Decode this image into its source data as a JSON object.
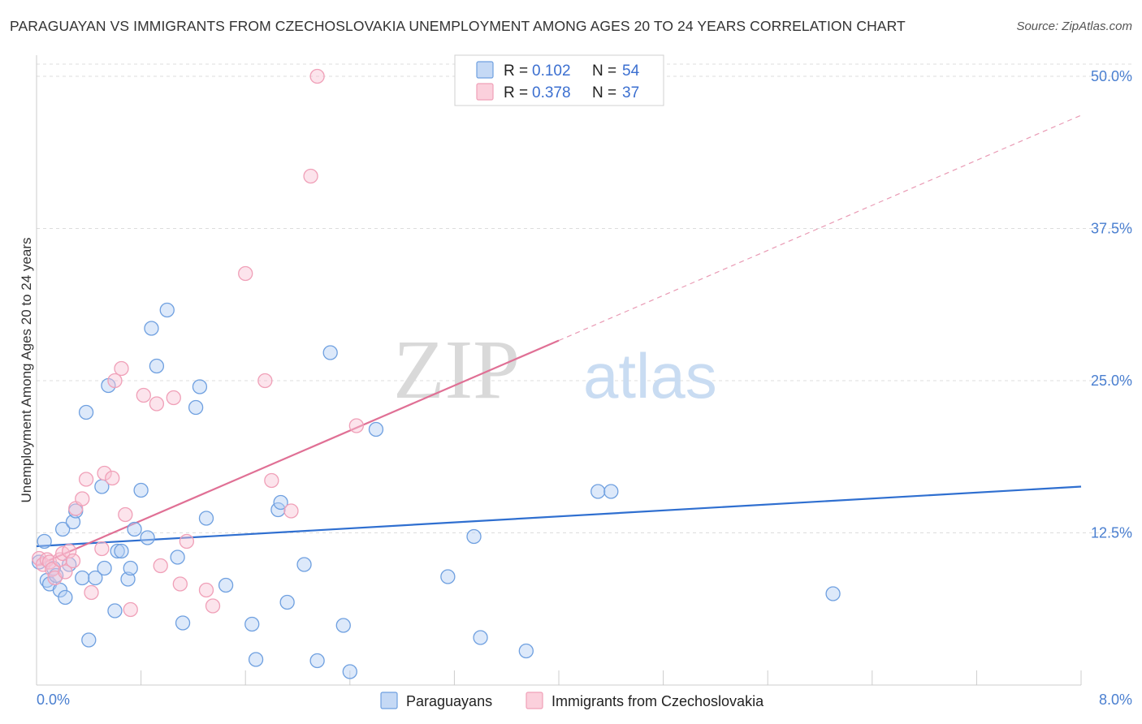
{
  "title": "PARAGUAYAN VS IMMIGRANTS FROM CZECHOSLOVAKIA UNEMPLOYMENT AMONG AGES 20 TO 24 YEARS CORRELATION CHART",
  "source": "Source: ZipAtlas.com",
  "watermark": {
    "zip": "ZIP",
    "atlas": "atlas"
  },
  "chart_data": {
    "type": "scatter",
    "ylabel": "Unemployment Among Ages 20 to 24 years",
    "xlabel": "",
    "xlim": [
      0,
      8
    ],
    "ylim": [
      0,
      51
    ],
    "x_tick_labels": [
      "0.0%",
      "8.0%"
    ],
    "y_ticks": [
      12.5,
      25.0,
      37.5,
      50.0
    ],
    "y_tick_labels": [
      "12.5%",
      "25.0%",
      "37.5%",
      "50.0%"
    ],
    "grid": true,
    "legend_position": "top-center",
    "stats_legend": [
      {
        "r_label": "R =",
        "r_value": "0.102",
        "n_label": "N =",
        "n_value": "54"
      },
      {
        "r_label": "R =",
        "r_value": "0.378",
        "n_label": "N =",
        "n_value": "37"
      }
    ],
    "series": [
      {
        "name": "Paraguayans",
        "color": "#6fa0e0",
        "line_color": "#2f6fd0",
        "trend": {
          "x": [
            0,
            8
          ],
          "y": [
            11.4,
            16.3
          ],
          "dashed_to": null
        },
        "x": [
          0.02,
          0.06,
          0.08,
          0.1,
          0.13,
          0.15,
          0.18,
          0.2,
          0.22,
          0.25,
          0.28,
          0.3,
          0.35,
          0.38,
          0.4,
          0.45,
          0.5,
          0.52,
          0.55,
          0.6,
          0.62,
          0.65,
          0.7,
          0.72,
          0.75,
          0.8,
          0.85,
          0.88,
          0.92,
          1.0,
          1.08,
          1.12,
          1.22,
          1.25,
          1.3,
          1.45,
          1.65,
          1.68,
          1.85,
          1.87,
          1.92,
          2.05,
          2.15,
          2.25,
          2.35,
          2.4,
          2.6,
          3.15,
          3.35,
          3.4,
          3.75,
          4.3,
          4.4,
          6.1
        ],
        "y": [
          10.1,
          11.8,
          8.6,
          8.3,
          9.6,
          9.0,
          7.8,
          12.8,
          7.2,
          9.9,
          13.4,
          14.3,
          8.8,
          22.4,
          3.7,
          8.8,
          16.3,
          9.6,
          24.6,
          6.1,
          11.0,
          11.0,
          8.7,
          9.6,
          12.8,
          16.0,
          12.1,
          29.3,
          26.2,
          30.8,
          10.5,
          5.1,
          22.8,
          24.5,
          13.7,
          8.2,
          5.0,
          2.1,
          14.4,
          15.0,
          6.8,
          9.9,
          2.0,
          27.3,
          4.9,
          1.1,
          21.0,
          8.9,
          12.2,
          3.9,
          2.8,
          15.9,
          15.9,
          7.5
        ]
      },
      {
        "name": "Immigrants from Czechoslovakia",
        "color": "#f0a0b8",
        "line_color": "#e07095",
        "trend": {
          "x": [
            0,
            4.0
          ],
          "y": [
            9.8,
            28.3
          ],
          "dashed_to": {
            "x": 8.0,
            "y": 46.8
          }
        },
        "x": [
          0.02,
          0.05,
          0.08,
          0.1,
          0.12,
          0.14,
          0.18,
          0.2,
          0.22,
          0.25,
          0.28,
          0.3,
          0.35,
          0.38,
          0.42,
          0.5,
          0.52,
          0.58,
          0.6,
          0.65,
          0.68,
          0.72,
          0.82,
          0.92,
          0.95,
          1.05,
          1.1,
          1.15,
          1.3,
          1.35,
          1.6,
          1.75,
          1.8,
          1.95,
          2.1,
          2.15,
          2.45
        ],
        "y": [
          10.4,
          9.9,
          10.3,
          10.1,
          9.5,
          8.8,
          10.3,
          10.8,
          9.3,
          11.0,
          10.2,
          14.5,
          15.3,
          16.9,
          7.6,
          11.2,
          17.4,
          17.0,
          25.0,
          26.0,
          14.0,
          6.2,
          23.8,
          23.1,
          9.8,
          23.6,
          8.3,
          11.8,
          7.8,
          6.5,
          33.8,
          25.0,
          16.8,
          14.3,
          41.8,
          50.0,
          21.3
        ]
      }
    ]
  }
}
